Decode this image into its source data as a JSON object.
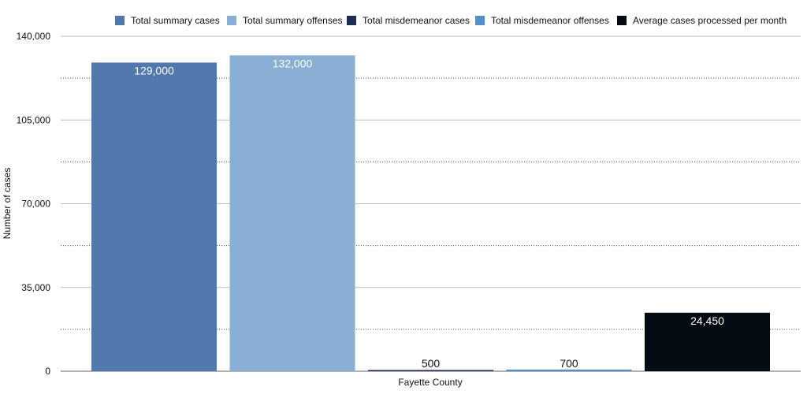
{
  "chart_data": {
    "type": "bar",
    "title": "",
    "xlabel": "",
    "ylabel": "Number of cases",
    "categories": [
      "Fayette County"
    ],
    "ylim": [
      0,
      140000
    ],
    "major_ticks": [
      0,
      35000,
      70000,
      105000,
      140000
    ],
    "major_tick_labels": [
      "0",
      "35,000",
      "70,000",
      "105,000",
      "140,000"
    ],
    "minor_gridlines": [
      17500,
      52500,
      87500,
      122500
    ],
    "grid": true,
    "legend_position": "top",
    "series": [
      {
        "name": "Total summary cases",
        "values": [
          129000
        ],
        "color": "#5279ad",
        "data_label": "129,000",
        "label_color": "#ffffff"
      },
      {
        "name": "Total summary offenses",
        "values": [
          132000
        ],
        "color": "#89afd5",
        "data_label": "132,000",
        "label_color": "#ffffff"
      },
      {
        "name": "Total misdemeanor cases",
        "values": [
          500
        ],
        "color": "#1b2d52",
        "data_label": "500",
        "label_color": "#111111"
      },
      {
        "name": "Total misdemeanor offenses",
        "values": [
          700
        ],
        "color": "#5390cb",
        "data_label": "700",
        "label_color": "#111111"
      },
      {
        "name": "Average cases processed per month",
        "values": [
          24450
        ],
        "color": "#050b12",
        "data_label": "24,450",
        "label_color": "#ffffff"
      }
    ]
  }
}
